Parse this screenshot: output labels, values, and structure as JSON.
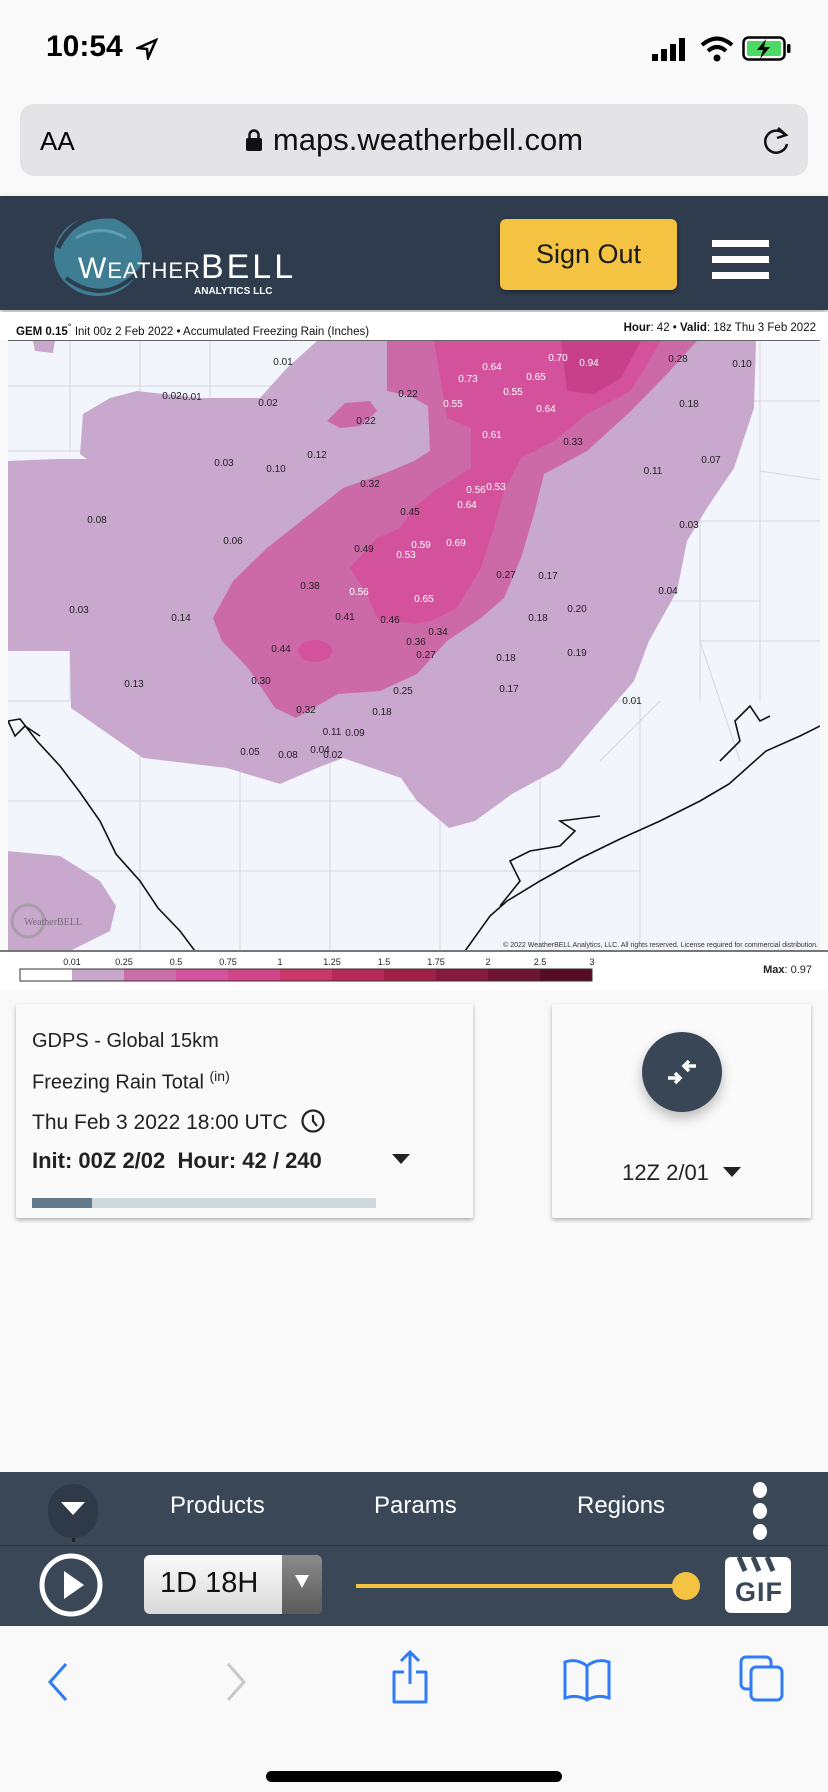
{
  "status": {
    "time": "10:54",
    "icons": [
      "location-arrow-icon",
      "signal-icon",
      "wifi-icon",
      "battery-charging-icon"
    ]
  },
  "browser": {
    "text_size_label": "AA",
    "url": "maps.weatherbell.com",
    "reload_icon": "reload-icon"
  },
  "header": {
    "logo_text": "WeatherBELL Analytics LLC",
    "sign_out": "Sign Out",
    "menu_icon": "hamburger-icon",
    "accent": "#f4c342"
  },
  "map": {
    "title_model": "GEM 0.15",
    "title_deg": "°",
    "title_rest": " Init 00z 2 Feb 2022 • Accumulated Freezing Rain (Inches)",
    "hour_label": "Hour",
    "hour_value": ": 42 • ",
    "valid_label": "Valid",
    "valid_value": ": 18z Thu 3 Feb 2022",
    "copyright": "© 2022 WeatherBELL Analytics, LLC. All rights reserved. License required for commercial distribution.",
    "watermark": "WeatherBELL",
    "values": [
      "0.01",
      "0.02",
      "0.01",
      "0.02",
      "0.22",
      "0.12",
      "0.03",
      "0.10",
      "0.32",
      "0.08",
      "0.06",
      "0.49",
      "0.38",
      "0.56",
      "0.03",
      "0.14",
      "0.41",
      "0.46",
      "0.44",
      "0.70",
      "0.94",
      "0.28",
      "0.10",
      "0.64",
      "0.73",
      "0.65",
      "0.55",
      "0.55",
      "0.64",
      "0.18",
      "0.22",
      "0.61",
      "0.33",
      "0.07",
      "0.11",
      "0.56",
      "0.53",
      "0.45",
      "0.64",
      "0.03",
      "0.59",
      "0.53",
      "0.69",
      "0.27",
      "0.17",
      "0.04",
      "0.65",
      "0.20",
      "0.18",
      "0.34",
      "0.36",
      "0.27",
      "0.19",
      "0.18",
      "0.13",
      "0.30",
      "0.25",
      "0.17",
      "0.01",
      "0.32",
      "0.18",
      "0.11",
      "0.09",
      "0.05",
      "0.08",
      "0.04",
      "0.02"
    ]
  },
  "legend": {
    "ticks": [
      "0.01",
      "0.25",
      "0.5",
      "0.75",
      "1",
      "1.25",
      "1.5",
      "1.75",
      "2",
      "2.5",
      "3"
    ],
    "colors": [
      "#ffffff",
      "#c9a6cc",
      "#cb6fab",
      "#d2529b",
      "#d14589",
      "#c93768",
      "#b52a58",
      "#9f2148",
      "#871a3c",
      "#6e1330",
      "#560d24"
    ],
    "max_label": "Max",
    "max_value": ": 0.97"
  },
  "card": {
    "model": "GDPS - Global 15km",
    "param": "Freezing Rain Total",
    "unit": "(in)",
    "valid": "Thu Feb 3 2022 18:00 UTC",
    "clock_icon": "clock-icon",
    "init_hour": "Init: 00Z 2/02  Hour: 42 / 240",
    "hour": 42,
    "hour_max": 240
  },
  "compare": {
    "icon": "compare-arrows-icon",
    "run": "12Z 2/01"
  },
  "nav": {
    "products": "Products",
    "params": "Params",
    "regions": "Regions"
  },
  "player": {
    "step": "1D 18H",
    "slider_value": 1.0,
    "gif": "GIF"
  },
  "safari": {
    "icons": [
      "back-icon",
      "forward-icon",
      "share-icon",
      "bookmarks-icon",
      "tabs-icon"
    ]
  }
}
